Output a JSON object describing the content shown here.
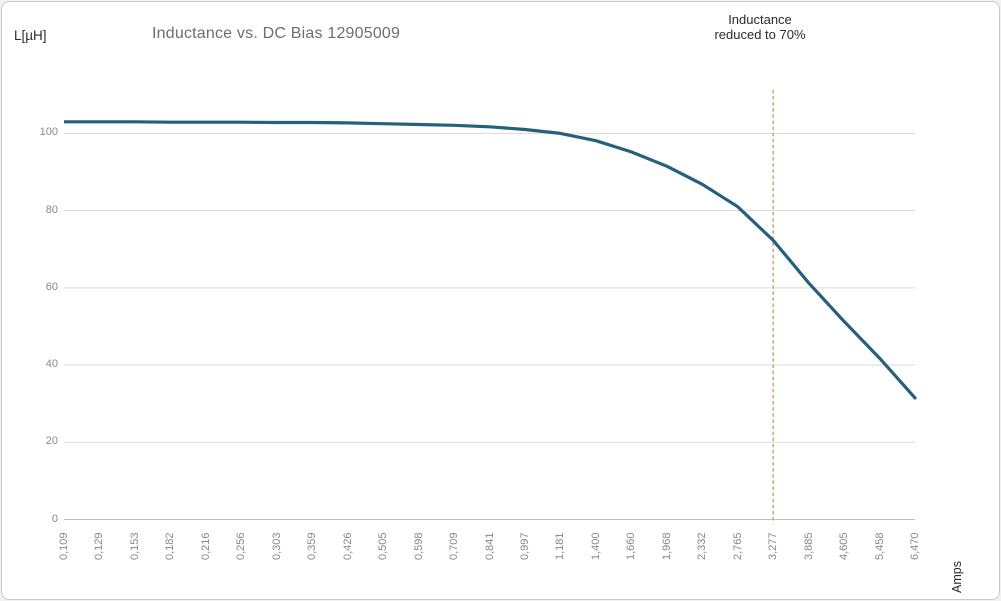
{
  "window": {
    "background": "#ffffff",
    "border_color": "#c9c9c9"
  },
  "chart_data": {
    "type": "line",
    "title": "Inductance vs. DC Bias 12905009",
    "y_axis_title": "L[µH]",
    "x_axis_title": "Amps",
    "categories": [
      "0,109",
      "0,129",
      "0,153",
      "0,182",
      "0,216",
      "0,256",
      "0,303",
      "0,359",
      "0,426",
      "0,505",
      "0,598",
      "0,709",
      "0,841",
      "0,997",
      "1,181",
      "1,400",
      "1,660",
      "1,968",
      "2,332",
      "2,765",
      "3,277",
      "3,885",
      "4,605",
      "5,458",
      "6,470"
    ],
    "series": [
      {
        "name": "Inductance",
        "color": "#23617d",
        "values": [
          103.0,
          103.0,
          103.0,
          102.9,
          102.9,
          102.9,
          102.8,
          102.8,
          102.7,
          102.5,
          102.3,
          102.1,
          101.7,
          101.0,
          100.0,
          98.1,
          95.2,
          91.5,
          86.8,
          81.0,
          72.3,
          61.3,
          51.3,
          41.8,
          31.5
        ]
      }
    ],
    "y_ticks": [
      0,
      20,
      40,
      60,
      80,
      100
    ],
    "ylim": [
      0,
      111
    ],
    "grid": true,
    "legend": false,
    "grid_color": "#dadada",
    "axis_line_color": "#c0c0c0",
    "tick_label_color": "#898989",
    "annotation": {
      "text_line1": "Inductance",
      "text_line2": "reduced to 70%",
      "x_category": "3,277",
      "x_index": 20,
      "line_color": "#c09a6e",
      "line_style": "dashed"
    }
  }
}
